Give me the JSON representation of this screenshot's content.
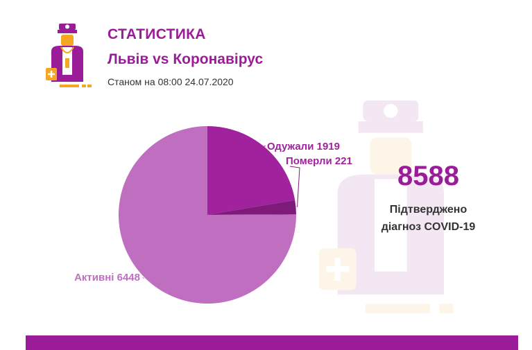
{
  "header": {
    "title": "СТАТИСТИКА",
    "subtitle": "Львів vs Коронавірус",
    "date_line": "Станом на 08:00 24.07.2020"
  },
  "summary": {
    "total": "8588",
    "caption_line1": "Підтверджено",
    "caption_line2": "діагноз COVID-19"
  },
  "icons": [
    "doctor-logo-icon",
    "doctor-watermark-icon"
  ],
  "colors": {
    "brand": "#9b1c98",
    "recovered": "#a0229d",
    "deaths": "#7d1a7a",
    "active": "#c06fc0",
    "text": "#333333"
  },
  "chart_data": {
    "type": "pie",
    "categories": [
      "Одужали",
      "Померли",
      "Активні"
    ],
    "values": [
      1919,
      221,
      6448
    ],
    "labels": [
      "Одужали 1919",
      "Померли 221",
      "Активні 6448"
    ],
    "title": ""
  }
}
